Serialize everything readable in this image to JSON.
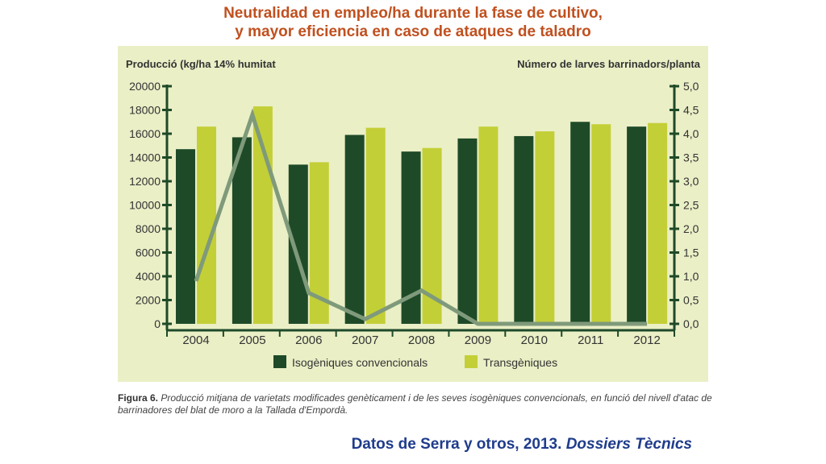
{
  "header": {
    "title_line1": "Neutralidad en empleo/ha durante la fase de cultivo,",
    "title_line2": "y mayor eficiencia en caso de ataques de taladro"
  },
  "caption": {
    "label": "Figura 6.",
    "text": "Producció mitjana de varietats modificades genèticament i de les seves isogèniques convencionals, en funció del nivell d'atac de barrinadores del blat de moro a la Tallada d'Empordà."
  },
  "source": {
    "prefix": "Datos de Serra y otros, 2013. ",
    "publication": "Dossiers Tècnics"
  },
  "colors": {
    "panel_bg": "#eaefc6",
    "isogenic": "#1e4a28",
    "transgenic": "#c3cf36",
    "line": "#7f9a7a",
    "axis": "#1e4a28",
    "title": "#c0501f",
    "source": "#1f3c8c"
  },
  "chart_data": {
    "type": "bar",
    "categories": [
      "2004",
      "2005",
      "2006",
      "2007",
      "2008",
      "2009",
      "2010",
      "2011",
      "2012"
    ],
    "series": [
      {
        "name": "Isogèniques convencionals",
        "values": [
          14700,
          15700,
          13400,
          15900,
          14500,
          15600,
          15800,
          17000,
          16600
        ]
      },
      {
        "name": "Transgèniques",
        "values": [
          16600,
          18300,
          13600,
          16500,
          14800,
          16600,
          16200,
          16800,
          16900
        ]
      }
    ],
    "line_series": {
      "name": "Número de larves barrinadors/planta",
      "values": [
        0.9,
        4.4,
        0.65,
        0.1,
        0.7,
        0.0,
        0.0,
        0.0,
        0.0
      ]
    },
    "ylabel": "Producció (kg/ha 14% humitat",
    "ylabel_right": "Número de larves barrinadors/planta",
    "ylim": [
      0,
      20000
    ],
    "ylim_right": [
      0,
      5
    ],
    "yticks": [
      "20000",
      "18000",
      "16000",
      "14000",
      "12000",
      "10000",
      "8000",
      "6000",
      "4000",
      "2000",
      "0"
    ],
    "yticks_right": [
      "5,0",
      "4,5",
      "4,0",
      "3,5",
      "3,0",
      "2,5",
      "2,0",
      "1,5",
      "1,0",
      "0,5",
      "0,0"
    ],
    "legend_position": "bottom",
    "grid": false
  }
}
